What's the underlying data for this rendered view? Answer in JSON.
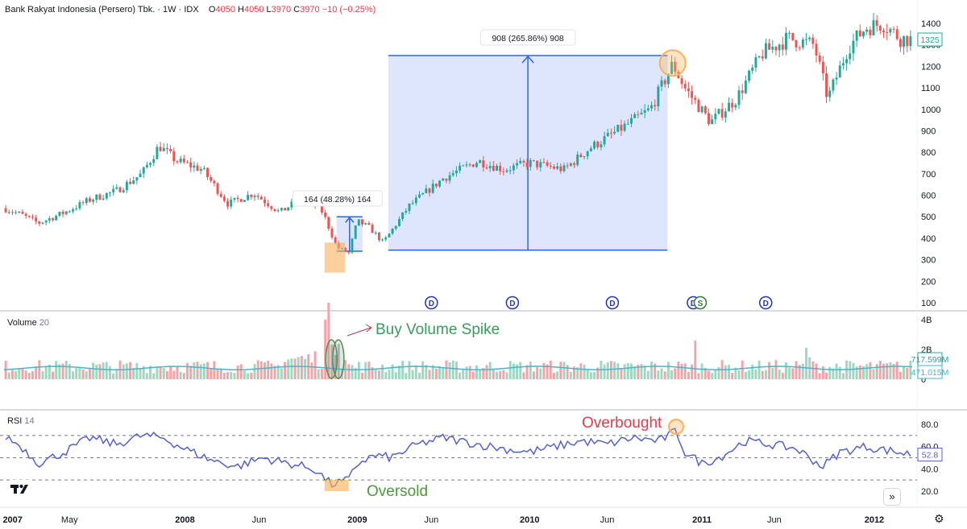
{
  "header": {
    "symbol": "Bank Rakyat Indonesia (Persero) Tbk. · 1W · IDX",
    "o_label": "O",
    "o_value": "4050",
    "h_label": "H",
    "h_value": "4050",
    "l_label": "L",
    "l_value": "3970",
    "c_label": "C",
    "c_value": "3970",
    "change": "−10 (−0.25%)"
  },
  "colors": {
    "up": "#26a69a",
    "down": "#ef5350",
    "rsi": "#5561c9",
    "vol_ma": "#45b6cf",
    "measure_fill": "#dde6fd",
    "measure_line": "#2962ff",
    "highlight": "#f7b25a",
    "annot_green": "#3a9b5c",
    "annot_red": "#e53b4a"
  },
  "panels": {
    "volume_title": "Volume",
    "volume_len": "20",
    "rsi_title": "RSI",
    "rsi_len": "14"
  },
  "annotations": {
    "measure_small": "164 (48.28%) 164",
    "measure_large": "908 (265.86%) 908",
    "buy_volume": "Buy Volume Spike",
    "oversold": "Oversold",
    "overbought": "Overbought",
    "dividend_markers": [
      "D",
      "D",
      "D",
      "D",
      "D"
    ],
    "split_marker": "S"
  },
  "controls": {
    "scroll_button": "»",
    "settings_icon": "gear-icon",
    "logo": "tradingview-logo"
  },
  "chart_data": [
    {
      "type": "candlestick",
      "title": "Bank Rakyat Indonesia (Persero) Tbk. · 1W · IDX",
      "x_tick_labels": [
        "2007",
        "May",
        "2008",
        "Jun",
        "2009",
        "Jun",
        "2010",
        "Jun",
        "2011",
        "Jun",
        "2012"
      ],
      "y_tick_labels": [
        "1400",
        "1300",
        "1200",
        "1100",
        "1000",
        "900",
        "800",
        "700",
        "600",
        "500",
        "400",
        "300",
        "200",
        "100"
      ],
      "ylim": [
        50,
        1500
      ],
      "last_price": "1325",
      "series": [
        {
          "name": "price",
          "approx_close_path": [
            [
              2007.0,
              540
            ],
            [
              2007.1,
              510
            ],
            [
              2007.2,
              470
            ],
            [
              2007.35,
              520
            ],
            [
              2007.5,
              580
            ],
            [
              2007.65,
              620
            ],
            [
              2007.8,
              700
            ],
            [
              2007.9,
              830
            ],
            [
              2008.0,
              760
            ],
            [
              2008.15,
              720
            ],
            [
              2008.3,
              560
            ],
            [
              2008.45,
              610
            ],
            [
              2008.6,
              520
            ],
            [
              2008.75,
              600
            ],
            [
              2008.85,
              520
            ],
            [
              2008.93,
              360
            ],
            [
              2009.0,
              330
            ],
            [
              2009.05,
              480
            ],
            [
              2009.12,
              450
            ],
            [
              2009.2,
              380
            ],
            [
              2009.35,
              550
            ],
            [
              2009.55,
              680
            ],
            [
              2009.75,
              760
            ],
            [
              2009.9,
              720
            ],
            [
              2010.05,
              750
            ],
            [
              2010.25,
              720
            ],
            [
              2010.4,
              820
            ],
            [
              2010.6,
              920
            ],
            [
              2010.75,
              1000
            ],
            [
              2010.88,
              1210
            ],
            [
              2010.95,
              1100
            ],
            [
              2011.1,
              940
            ],
            [
              2011.25,
              1050
            ],
            [
              2011.4,
              1260
            ],
            [
              2011.55,
              1330
            ],
            [
              2011.7,
              1300
            ],
            [
              2011.78,
              1050
            ],
            [
              2011.9,
              1290
            ],
            [
              2012.0,
              1380
            ],
            [
              2012.1,
              1400
            ],
            [
              2012.2,
              1330
            ],
            [
              2012.27,
              1325
            ]
          ]
        }
      ],
      "measurements": [
        {
          "label": "164 (48.28%) 164",
          "from": 340,
          "to": 500
        },
        {
          "label": "908 (265.86%) 908",
          "from": 345,
          "to": 1250
        }
      ]
    },
    {
      "type": "bar",
      "title": "Volume 20",
      "y_tick_labels": [
        "4B",
        "2B",
        "0"
      ],
      "ylim": [
        0,
        4000000000
      ],
      "value_labels": [
        "717.599M",
        "471.015M"
      ]
    },
    {
      "type": "line",
      "title": "RSI 14",
      "y_tick_labels": [
        "80.0",
        "60.0",
        "40.0",
        "20.0"
      ],
      "ylim": [
        10,
        90
      ],
      "guide_levels": [
        70,
        50,
        30
      ],
      "last_value": "52.8",
      "series": [
        {
          "name": "RSI",
          "approx_path": [
            [
              2007.0,
              70
            ],
            [
              2007.1,
              60
            ],
            [
              2007.2,
              45
            ],
            [
              2007.35,
              55
            ],
            [
              2007.5,
              68
            ],
            [
              2007.65,
              62
            ],
            [
              2007.8,
              70
            ],
            [
              2007.92,
              68
            ],
            [
              2008.05,
              58
            ],
            [
              2008.2,
              48
            ],
            [
              2008.35,
              42
            ],
            [
              2008.5,
              50
            ],
            [
              2008.65,
              45
            ],
            [
              2008.8,
              40
            ],
            [
              2008.9,
              26
            ],
            [
              2009.0,
              30
            ],
            [
              2009.05,
              45
            ],
            [
              2009.15,
              52
            ],
            [
              2009.25,
              50
            ],
            [
              2009.4,
              62
            ],
            [
              2009.55,
              68
            ],
            [
              2009.75,
              62
            ],
            [
              2009.9,
              58
            ],
            [
              2010.05,
              55
            ],
            [
              2010.2,
              60
            ],
            [
              2010.35,
              65
            ],
            [
              2010.5,
              62
            ],
            [
              2010.65,
              68
            ],
            [
              2010.8,
              65
            ],
            [
              2010.9,
              74
            ],
            [
              2010.95,
              55
            ],
            [
              2011.05,
              45
            ],
            [
              2011.15,
              50
            ],
            [
              2011.3,
              65
            ],
            [
              2011.45,
              62
            ],
            [
              2011.6,
              58
            ],
            [
              2011.75,
              42
            ],
            [
              2011.85,
              55
            ],
            [
              2012.0,
              60
            ],
            [
              2012.15,
              56
            ],
            [
              2012.27,
              52.8
            ]
          ]
        }
      ]
    }
  ]
}
